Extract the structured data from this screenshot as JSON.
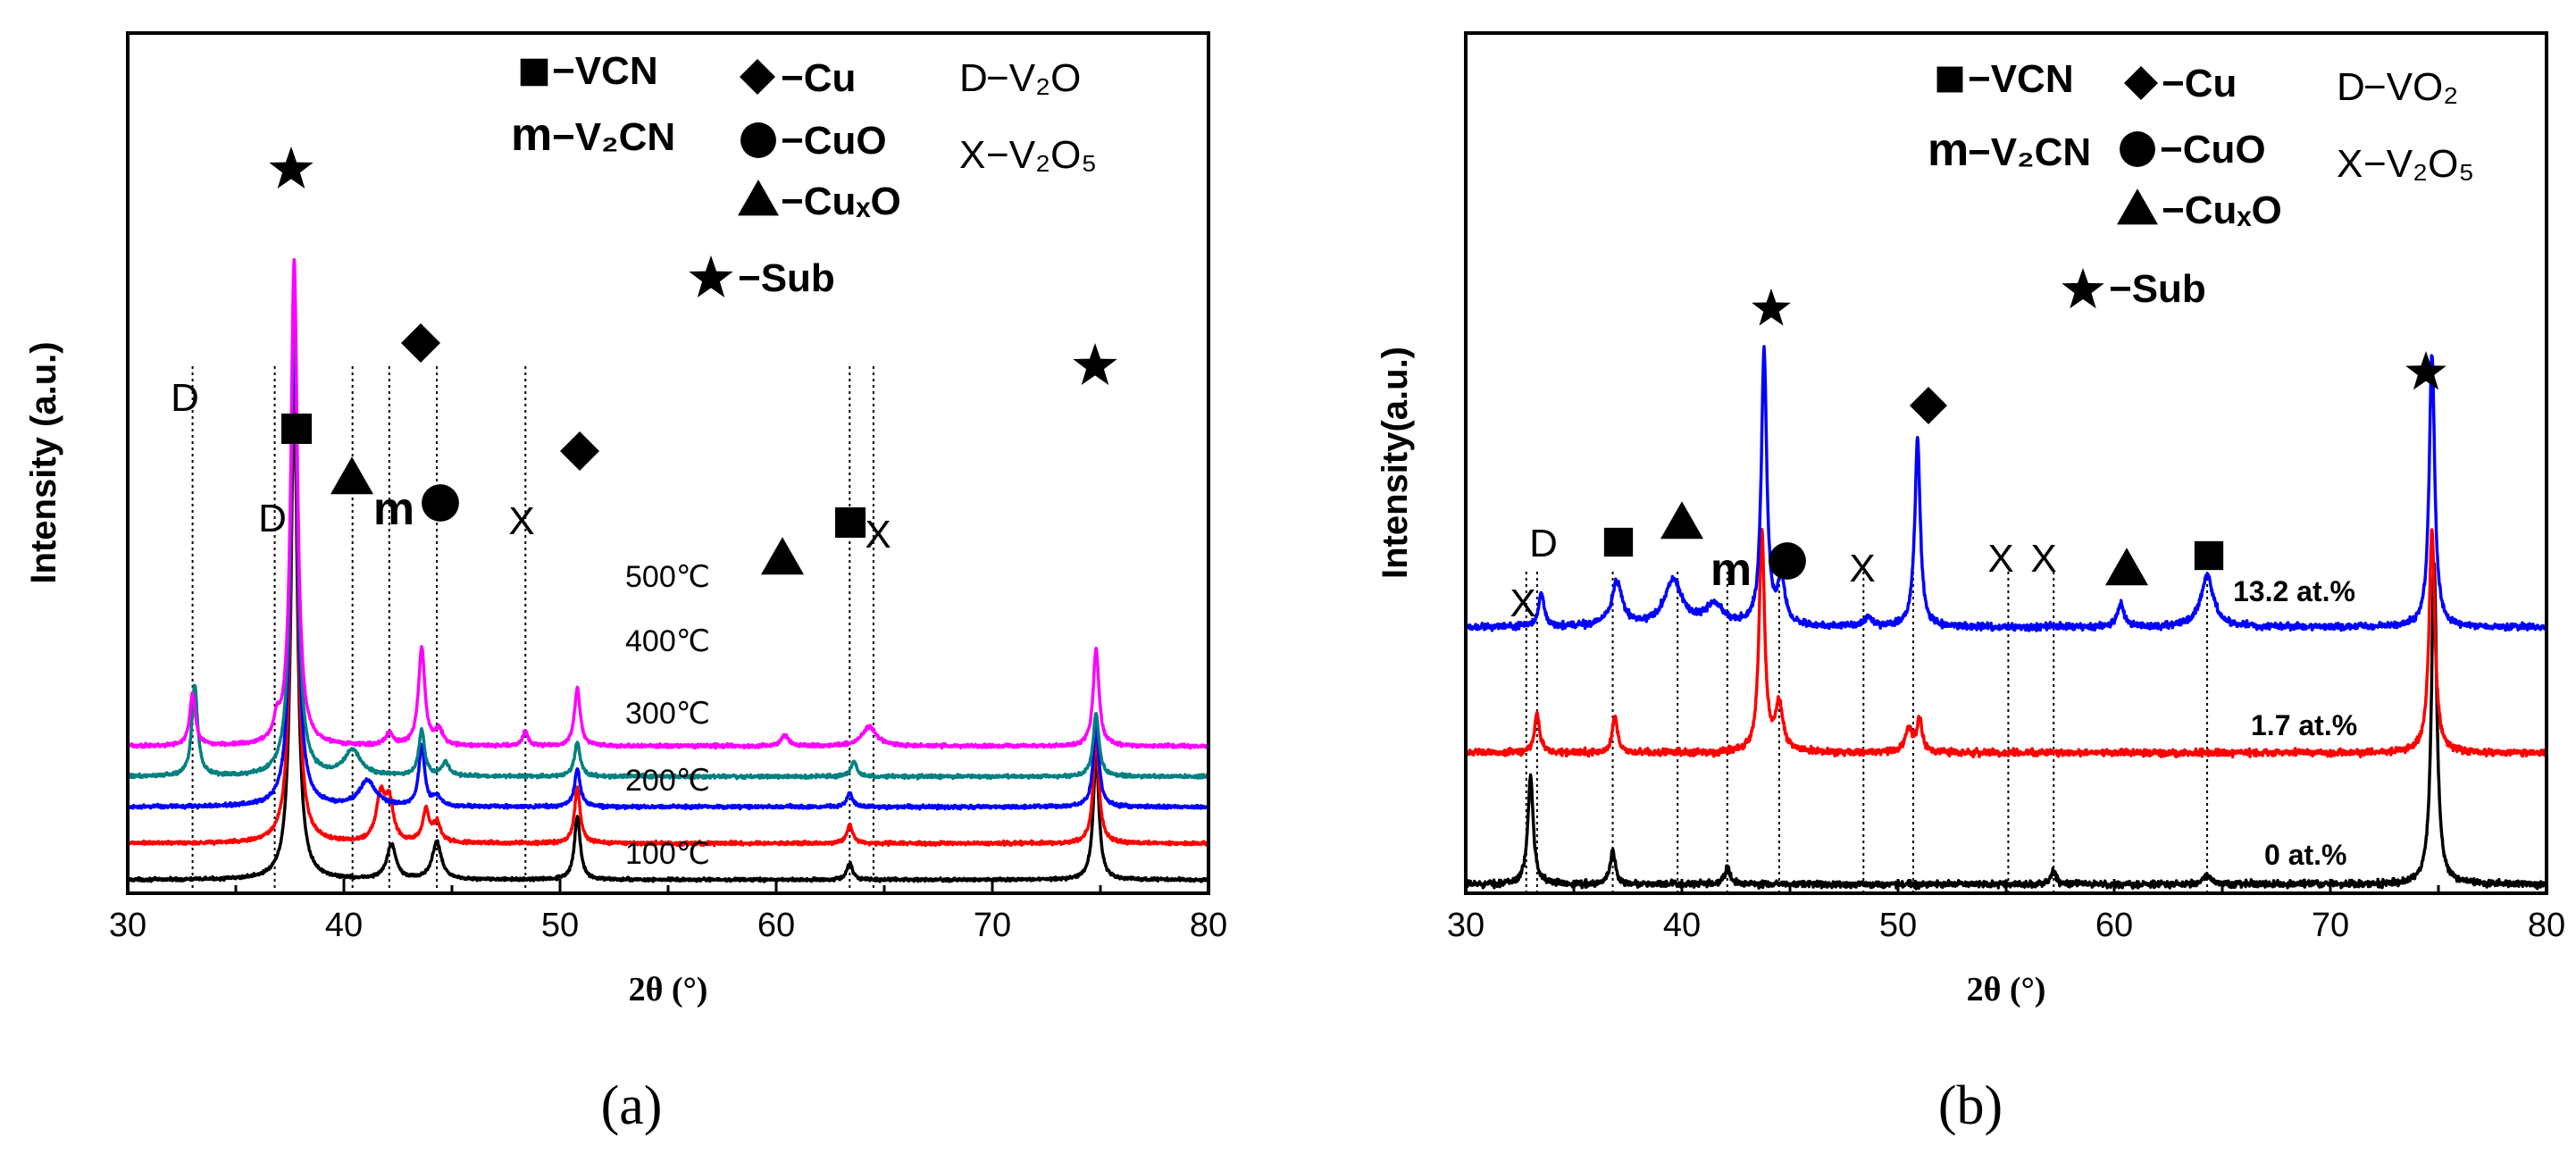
{
  "chart_data": [
    {
      "panel_label": "(a)",
      "type": "line",
      "title": "",
      "xlabel": "2θ (°)",
      "ylabel": "Intensity (a.u.)",
      "xlim": [
        30,
        80
      ],
      "xticks": [
        "30",
        "40",
        "50",
        "60",
        "70",
        "80"
      ],
      "legend": [
        {
          "marker": "square",
          "text": "−VCN"
        },
        {
          "marker": "m",
          "text": "−V₂CN"
        },
        {
          "marker": "diamond",
          "text": "−Cu"
        },
        {
          "marker": "circle",
          "text": "−CuO"
        },
        {
          "marker": "triangle",
          "text": "−CuₓO"
        },
        {
          "marker": "star",
          "text": "−Sub"
        },
        {
          "marker": "D",
          "text": "−V₂O"
        },
        {
          "marker": "X",
          "text": "−V₂O₅"
        }
      ],
      "series": [
        {
          "name": "100℃",
          "color": "#000000",
          "offset": 0,
          "noise": 0.012,
          "peaks": [
            [
              37.7,
              8.0,
              0.18
            ],
            [
              42.2,
              0.58,
              0.25
            ],
            [
              44.3,
              0.62,
              0.25
            ],
            [
              50.8,
              1.05,
              0.16
            ],
            [
              63.4,
              0.27,
              0.16
            ],
            [
              74.8,
              2.05,
              0.16
            ]
          ]
        },
        {
          "name": "200℃",
          "color": "#ff0000",
          "offset": 0.6,
          "noise": 0.014,
          "peaks": [
            [
              37.7,
              8.0,
              0.18
            ],
            [
              41.7,
              0.75,
              0.25
            ],
            [
              42.1,
              0.62,
              0.22
            ],
            [
              43.8,
              0.52,
              0.18
            ],
            [
              44.3,
              0.32,
              0.2
            ],
            [
              50.8,
              0.9,
              0.16
            ],
            [
              63.4,
              0.3,
              0.16
            ],
            [
              74.8,
              1.75,
              0.16
            ]
          ]
        },
        {
          "name": "300℃",
          "color": "#0000ff",
          "offset": 1.2,
          "noise": 0.014,
          "peaks": [
            [
              37.7,
              8.0,
              0.18
            ],
            [
              41.1,
              0.42,
              0.45
            ],
            [
              43.6,
              1.0,
              0.16
            ],
            [
              44.3,
              0.15,
              0.2
            ],
            [
              50.8,
              0.62,
              0.16
            ],
            [
              63.4,
              0.22,
              0.16
            ],
            [
              74.8,
              1.35,
              0.16
            ]
          ]
        },
        {
          "name": "400℃",
          "color": "#008080",
          "offset": 1.7,
          "noise": 0.014,
          "peaks": [
            [
              33.1,
              1.5,
              0.16
            ],
            [
              37.7,
              8.0,
              0.18
            ],
            [
              40.4,
              0.42,
              0.45
            ],
            [
              43.6,
              0.75,
              0.16
            ],
            [
              44.7,
              0.22,
              0.2
            ],
            [
              50.8,
              0.55,
              0.16
            ],
            [
              63.6,
              0.25,
              0.16
            ],
            [
              74.8,
              1.05,
              0.16
            ]
          ]
        },
        {
          "name": "500℃",
          "color": "#ff00ff",
          "offset": 2.2,
          "noise": 0.014,
          "peaks": [
            [
              33.0,
              0.85,
              0.16
            ],
            [
              36.9,
              0.3,
              0.16
            ],
            [
              37.7,
              8.0,
              0.18
            ],
            [
              42.1,
              0.2,
              0.2
            ],
            [
              43.6,
              1.6,
              0.18
            ],
            [
              44.4,
              0.25,
              0.2
            ],
            [
              48.4,
              0.25,
              0.14
            ],
            [
              50.8,
              0.95,
              0.16
            ],
            [
              60.4,
              0.18,
              0.2
            ],
            [
              64.3,
              0.32,
              0.4
            ],
            [
              74.8,
              1.6,
              0.16
            ]
          ]
        }
      ],
      "annotations": [
        {
          "marker": "D",
          "x": 33.0
        },
        {
          "marker": "D",
          "x": 36.6
        },
        {
          "marker": "square",
          "x": 37.9
        },
        {
          "marker": "triangle",
          "x": 40.5
        },
        {
          "marker": "m",
          "x": 42.3
        },
        {
          "marker": "circle",
          "x": 44.4
        },
        {
          "marker": "diamond",
          "x": 43.6
        },
        {
          "marker": "X",
          "x": 48.4
        },
        {
          "marker": "diamond",
          "x": 50.8
        },
        {
          "marker": "triangle",
          "x": 60.3
        },
        {
          "marker": "square",
          "x": 63.4
        },
        {
          "marker": "X",
          "x": 64.8
        },
        {
          "marker": "star",
          "x": 37.6
        },
        {
          "marker": "star",
          "x": 74.8
        }
      ],
      "dotted_lines_x": [
        33.0,
        36.8,
        40.4,
        42.1,
        44.3,
        48.4,
        63.4,
        64.5
      ]
    },
    {
      "panel_label": "(b)",
      "type": "line",
      "title": "",
      "xlabel": "2θ (°)",
      "ylabel": "Intensity(a.u.)",
      "xlim": [
        30,
        80
      ],
      "xticks": [
        "30",
        "40",
        "50",
        "60",
        "70",
        "80"
      ],
      "legend": [
        {
          "marker": "square",
          "text": "−VCN"
        },
        {
          "marker": "m",
          "text": "−V₂CN"
        },
        {
          "marker": "diamond",
          "text": "−Cu"
        },
        {
          "marker": "circle",
          "text": "−CuO"
        },
        {
          "marker": "triangle",
          "text": "−CuₓO"
        },
        {
          "marker": "star",
          "text": "−Sub"
        },
        {
          "marker": "D",
          "text": "−VO₂"
        },
        {
          "marker": "X",
          "text": "−V₂O₅"
        }
      ],
      "series": [
        {
          "name": "0 at.%",
          "color": "#000000",
          "offset": 0,
          "noise": 0.014,
          "peaks": [
            [
              33.0,
              0.95,
              0.15
            ],
            [
              36.8,
              0.3,
              0.14
            ],
            [
              42.1,
              0.15,
              0.14
            ],
            [
              57.2,
              0.12,
              0.14
            ],
            [
              64.3,
              0.08,
              0.2
            ],
            [
              74.8,
              2.8,
              0.15
            ]
          ]
        },
        {
          "name": "1.7 at.%",
          "color": "#ff0000",
          "offset": 1.15,
          "noise": 0.014,
          "peaks": [
            [
              33.3,
              0.35,
              0.14
            ],
            [
              36.9,
              0.32,
              0.14
            ],
            [
              43.7,
              1.95,
              0.15
            ],
            [
              44.5,
              0.42,
              0.2
            ],
            [
              50.5,
              0.2,
              0.2
            ],
            [
              51.0,
              0.28,
              0.15
            ],
            [
              74.7,
              1.95,
              0.16
            ]
          ]
        },
        {
          "name": "13.2 at.%",
          "color": "#0000ff",
          "offset": 2.25,
          "noise": 0.014,
          "peaks": [
            [
              33.5,
              0.3,
              0.15
            ],
            [
              37.0,
              0.38,
              0.3
            ],
            [
              39.6,
              0.4,
              0.5
            ],
            [
              41.5,
              0.18,
              0.5
            ],
            [
              43.8,
              2.4,
              0.15
            ],
            [
              44.6,
              0.4,
              0.2
            ],
            [
              48.6,
              0.08,
              0.2
            ],
            [
              50.9,
              1.65,
              0.15
            ],
            [
              60.3,
              0.2,
              0.18
            ],
            [
              64.3,
              0.45,
              0.35
            ],
            [
              74.7,
              2.4,
              0.15
            ]
          ]
        }
      ],
      "annotations": [
        {
          "marker": "X",
          "x": 32.6
        },
        {
          "marker": "D",
          "x": 33.3
        },
        {
          "marker": "square",
          "x": 37.0
        },
        {
          "marker": "triangle",
          "x": 40.0
        },
        {
          "marker": "m",
          "x": 42.4
        },
        {
          "marker": "circle",
          "x": 44.5
        },
        {
          "marker": "star",
          "x": 44.2
        },
        {
          "marker": "X",
          "x": 48.4
        },
        {
          "marker": "diamond",
          "x": 51.3
        },
        {
          "marker": "X",
          "x": 55.1
        },
        {
          "marker": "X",
          "x": 57.1
        },
        {
          "marker": "triangle",
          "x": 60.4
        },
        {
          "marker": "square",
          "x": 64.5
        },
        {
          "marker": "star",
          "x": 74.6
        }
      ],
      "dotted_lines_x": [
        32.8,
        33.3,
        36.8,
        39.8,
        42.1,
        44.5,
        48.4,
        50.7,
        55.1,
        57.2,
        64.3
      ]
    }
  ]
}
